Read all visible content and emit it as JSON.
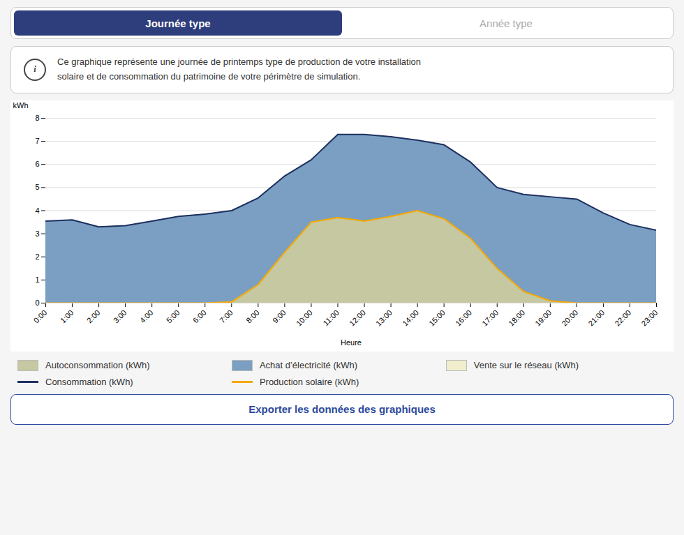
{
  "chart_data": {
    "type": "area",
    "title": "Journée type",
    "annotations": [
      "Année type",
      "Ce graphique représente une journée de printemps type de production de votre installation",
      "solaire et de consommation du patrimoine de votre périmètre de simulation.",
      "Exporter les données des graphiques"
    ],
    "x_label": "Heure",
    "y_label": "kWh",
    "x": [
      0,
      1,
      2,
      3,
      4,
      5,
      6,
      7,
      8,
      9,
      10,
      11,
      12,
      13,
      14,
      15,
      16,
      17,
      18,
      19,
      20,
      21,
      22,
      23
    ],
    "stacked": true,
    "series": [
      {
        "name": "Autoconsommation (kWh)",
        "type": "area",
        "color": "#c5c8a0",
        "values": [
          0,
          0,
          0,
          0,
          0,
          0,
          0,
          0.05,
          0.8,
          2.2,
          3.5,
          3.7,
          3.55,
          3.75,
          4.0,
          3.65,
          2.8,
          1.5,
          0.5,
          0.1,
          0,
          0,
          0,
          0
        ]
      },
      {
        "name": "Achat d’électricité (kWh)",
        "type": "area",
        "color": "#7a9fc2",
        "values": [
          3.55,
          3.6,
          3.3,
          3.35,
          3.55,
          3.75,
          3.85,
          3.95,
          3.75,
          3.3,
          2.7,
          3.6,
          3.75,
          3.45,
          3.05,
          3.2,
          3.3,
          3.5,
          4.2,
          4.5,
          4.5,
          3.9,
          3.4,
          3.15
        ]
      },
      {
        "name": "Vente sur le réseau (kWh)",
        "type": "area",
        "color": "#f0eecc",
        "values": [
          0,
          0,
          0,
          0,
          0,
          0,
          0,
          0,
          0,
          0,
          0,
          0,
          0,
          0,
          0,
          0,
          0,
          0,
          0,
          0,
          0,
          0,
          0,
          0
        ]
      },
      {
        "name": "Consommation (kWh)",
        "type": "line",
        "color": "#1d3060",
        "values": [
          3.55,
          3.6,
          3.3,
          3.35,
          3.55,
          3.75,
          3.85,
          4.0,
          4.55,
          5.5,
          6.2,
          7.3,
          7.3,
          7.2,
          7.05,
          6.85,
          6.1,
          5.0,
          4.7,
          4.6,
          4.5,
          3.9,
          3.4,
          3.15
        ]
      },
      {
        "name": "Production solaire (kWh)",
        "type": "line",
        "color": "#f5a800",
        "values": [
          0,
          0,
          0,
          0,
          0,
          0,
          0,
          0.05,
          0.8,
          2.2,
          3.5,
          3.7,
          3.55,
          3.75,
          4.0,
          3.65,
          2.8,
          1.5,
          0.5,
          0.1,
          0,
          0,
          0,
          0
        ]
      }
    ],
    "xlim": [
      0,
      23
    ],
    "xticks": [
      {
        "value": 0,
        "label": "0:00"
      },
      {
        "value": 1,
        "label": "1:00"
      },
      {
        "value": 2,
        "label": "2:00"
      },
      {
        "value": 3,
        "label": "3:00"
      },
      {
        "value": 4,
        "label": "4:00"
      },
      {
        "value": 5,
        "label": "5:00"
      },
      {
        "value": 6,
        "label": "6:00"
      },
      {
        "value": 7,
        "label": "7:00"
      },
      {
        "value": 8,
        "label": "8:00"
      },
      {
        "value": 9,
        "label": "9:00"
      },
      {
        "value": 10,
        "label": "10:00"
      },
      {
        "value": 11,
        "label": "11:00"
      },
      {
        "value": 12,
        "label": "12:00"
      },
      {
        "value": 13,
        "label": "13:00"
      },
      {
        "value": 14,
        "label": "14:00"
      },
      {
        "value": 15,
        "label": "15:00"
      },
      {
        "value": 16,
        "label": "16:00"
      },
      {
        "value": 17,
        "label": "17:00"
      },
      {
        "value": 18,
        "label": "18:00"
      },
      {
        "value": 19,
        "label": "19:00"
      },
      {
        "value": 20,
        "label": "20:00"
      },
      {
        "value": 21,
        "label": "21:00"
      },
      {
        "value": 22,
        "label": "22:00"
      },
      {
        "value": 23,
        "label": "23:00"
      }
    ],
    "ylim": [
      0,
      8
    ],
    "yticks": [
      0,
      1,
      2,
      3,
      4,
      5,
      6,
      7,
      8
    ],
    "grid": true
  }
}
